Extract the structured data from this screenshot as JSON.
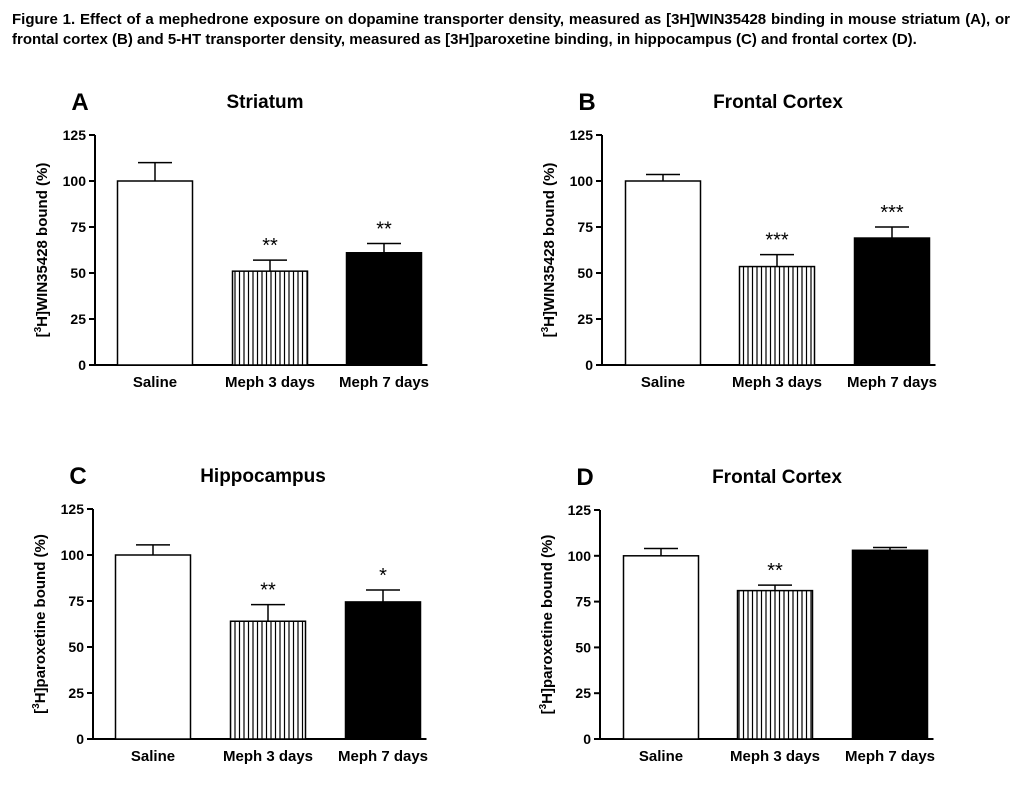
{
  "caption": "Figure 1. Effect of a mephedrone exposure on dopamine transporter density, measured as [3H]WIN35428 binding in mouse striatum (A), or frontal cortex (B) and 5-HT transporter density, measured as [3H]paroxetine binding, in hippocampus (C) and frontal cortex (D).",
  "chart_data": [
    {
      "type": "bar",
      "panel": "A",
      "title": "Striatum",
      "ylabel_parts": [
        "[",
        "3",
        "H]WIN35428 bound (%)"
      ],
      "categories": [
        "Saline",
        "Meph 3 days",
        "Meph 7 days"
      ],
      "values": [
        100,
        51,
        61
      ],
      "errors": [
        10,
        6,
        5
      ],
      "significance": [
        "",
        "**",
        "**"
      ],
      "fills": [
        "white",
        "striped",
        "black"
      ],
      "ylim": [
        0,
        125
      ],
      "yticks": [
        0,
        25,
        50,
        75,
        100,
        125
      ],
      "grid": false
    },
    {
      "type": "bar",
      "panel": "B",
      "title": "Frontal Cortex",
      "ylabel_parts": [
        "[",
        "3",
        "H]WIN35428 bound (%)"
      ],
      "categories": [
        "Saline",
        "Meph 3 days",
        "Meph 7 days"
      ],
      "values": [
        100,
        53.5,
        69
      ],
      "errors": [
        3.5,
        6.5,
        6
      ],
      "significance": [
        "",
        "***",
        "***"
      ],
      "fills": [
        "white",
        "striped",
        "black"
      ],
      "ylim": [
        0,
        125
      ],
      "yticks": [
        0,
        25,
        50,
        75,
        100,
        125
      ],
      "grid": false
    },
    {
      "type": "bar",
      "panel": "C",
      "title": "Hippocampus",
      "ylabel_parts": [
        "[",
        "3",
        "H]paroxetine bound (%)"
      ],
      "categories": [
        "Saline",
        "Meph 3 days",
        "Meph 7 days"
      ],
      "values": [
        100,
        64,
        74.5
      ],
      "errors": [
        5.5,
        9,
        6.5
      ],
      "significance": [
        "",
        "**",
        "*"
      ],
      "fills": [
        "white",
        "striped",
        "black"
      ],
      "ylim": [
        0,
        125
      ],
      "yticks": [
        0,
        25,
        50,
        75,
        100,
        125
      ],
      "grid": false
    },
    {
      "type": "bar",
      "panel": "D",
      "title": "Frontal Cortex",
      "ylabel_parts": [
        "[",
        "3",
        "H]paroxetine bound (%)"
      ],
      "categories": [
        "Saline",
        "Meph 3 days",
        "Meph 7 days"
      ],
      "values": [
        100,
        81,
        103
      ],
      "errors": [
        4,
        3,
        1.5
      ],
      "significance": [
        "",
        "**",
        ""
      ],
      "fills": [
        "white",
        "striped",
        "black"
      ],
      "ylim": [
        0,
        125
      ],
      "yticks": [
        0,
        25,
        50,
        75,
        100,
        125
      ],
      "grid": false
    }
  ]
}
